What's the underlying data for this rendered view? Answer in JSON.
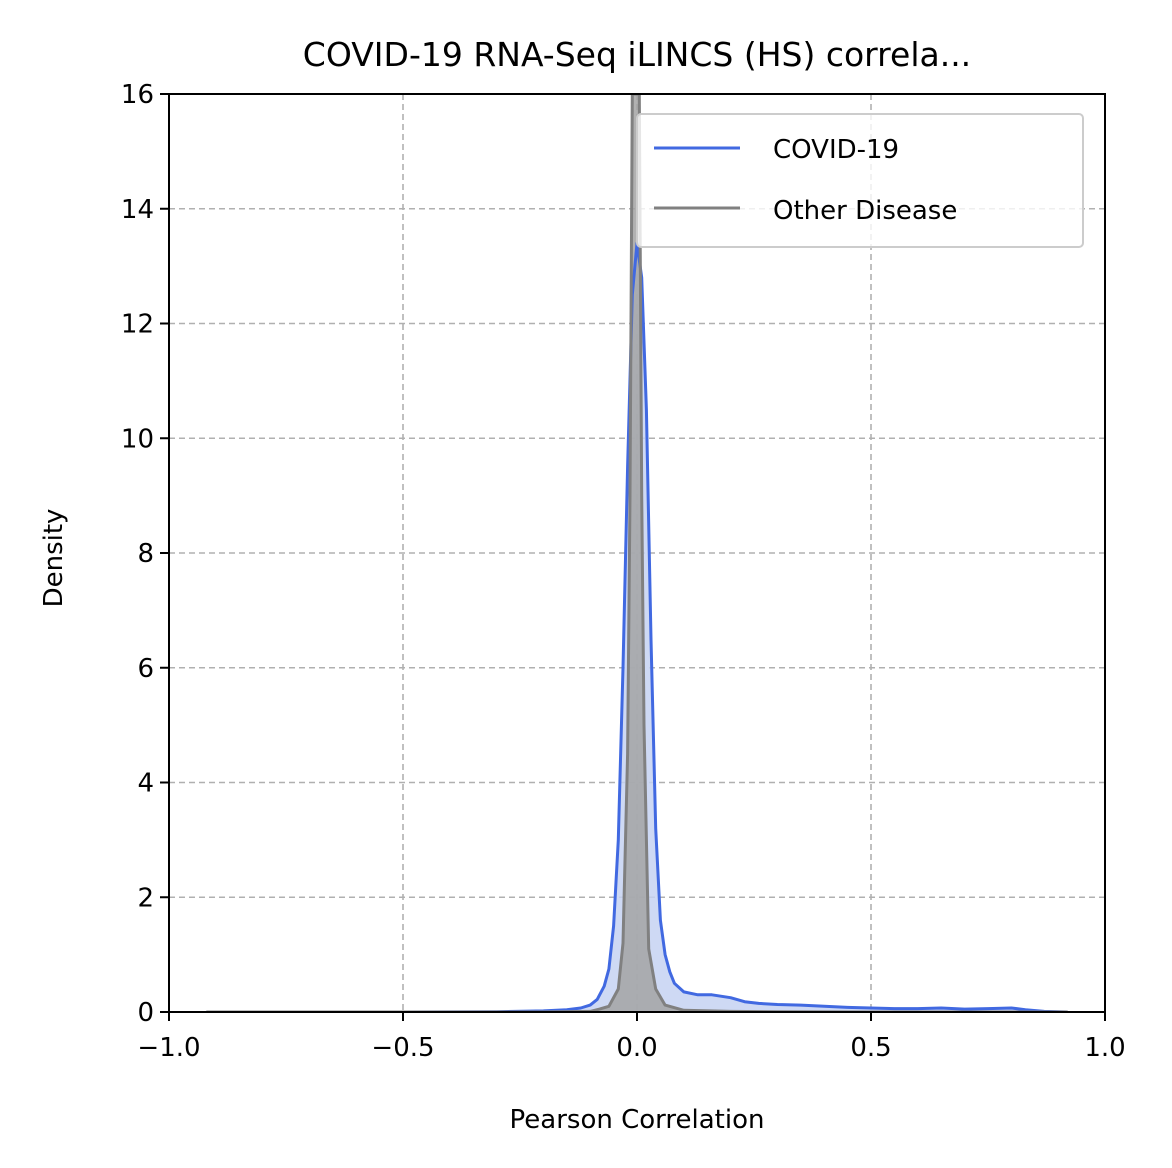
{
  "chart_data": {
    "type": "area",
    "title": "COVID-19 RNA-Seq iLINCS (HS) correla...",
    "xlabel": "Pearson Correlation",
    "ylabel": "Density",
    "xlim": [
      -1.0,
      1.0
    ],
    "ylim": [
      0,
      16
    ],
    "x_ticks": [
      -1.0,
      -0.5,
      0.0,
      0.5,
      1.0
    ],
    "x_tick_labels": [
      "−1.0",
      "−0.5",
      "0.0",
      "0.5",
      "1.0"
    ],
    "y_ticks": [
      0,
      2,
      4,
      6,
      8,
      10,
      12,
      14,
      16
    ],
    "y_tick_labels": [
      "0",
      "2",
      "4",
      "6",
      "8",
      "10",
      "12",
      "14",
      "16"
    ],
    "grid": true,
    "legend_position": "top-right",
    "series": [
      {
        "name": "COVID-19",
        "color": "#4169e1",
        "fill": "#c5d2f2",
        "points": [
          [
            -0.92,
            0.0
          ],
          [
            -0.5,
            0.0
          ],
          [
            -0.3,
            0.005
          ],
          [
            -0.2,
            0.02
          ],
          [
            -0.15,
            0.04
          ],
          [
            -0.12,
            0.07
          ],
          [
            -0.1,
            0.12
          ],
          [
            -0.085,
            0.22
          ],
          [
            -0.07,
            0.45
          ],
          [
            -0.06,
            0.75
          ],
          [
            -0.05,
            1.5
          ],
          [
            -0.04,
            3.0
          ],
          [
            -0.03,
            6.0
          ],
          [
            -0.02,
            9.5
          ],
          [
            -0.01,
            12.5
          ],
          [
            0.0,
            13.4
          ],
          [
            0.01,
            12.8
          ],
          [
            0.02,
            10.5
          ],
          [
            0.03,
            6.5
          ],
          [
            0.04,
            3.2
          ],
          [
            0.05,
            1.6
          ],
          [
            0.06,
            1.0
          ],
          [
            0.07,
            0.7
          ],
          [
            0.08,
            0.5
          ],
          [
            0.1,
            0.35
          ],
          [
            0.13,
            0.3
          ],
          [
            0.16,
            0.3
          ],
          [
            0.2,
            0.25
          ],
          [
            0.23,
            0.18
          ],
          [
            0.26,
            0.15
          ],
          [
            0.3,
            0.13
          ],
          [
            0.35,
            0.12
          ],
          [
            0.4,
            0.1
          ],
          [
            0.45,
            0.08
          ],
          [
            0.5,
            0.07
          ],
          [
            0.55,
            0.06
          ],
          [
            0.6,
            0.06
          ],
          [
            0.65,
            0.07
          ],
          [
            0.7,
            0.05
          ],
          [
            0.75,
            0.06
          ],
          [
            0.8,
            0.07
          ],
          [
            0.83,
            0.04
          ],
          [
            0.87,
            0.01
          ],
          [
            0.92,
            0.0
          ]
        ]
      },
      {
        "name": "Other Disease",
        "color": "#808080",
        "fill": "#a3a3a3",
        "points": [
          [
            -0.92,
            0.0
          ],
          [
            -0.2,
            0.0
          ],
          [
            -0.1,
            0.01
          ],
          [
            -0.08,
            0.05
          ],
          [
            -0.06,
            0.1
          ],
          [
            -0.04,
            0.4
          ],
          [
            -0.03,
            1.2
          ],
          [
            -0.02,
            4.5
          ],
          [
            -0.015,
            9.0
          ],
          [
            -0.01,
            16.0
          ],
          [
            0.0,
            16.0
          ],
          [
            0.005,
            16.0
          ],
          [
            0.01,
            9.0
          ],
          [
            0.015,
            5.0
          ],
          [
            0.025,
            1.1
          ],
          [
            0.04,
            0.4
          ],
          [
            0.06,
            0.12
          ],
          [
            0.1,
            0.03
          ],
          [
            0.2,
            0.01
          ],
          [
            0.3,
            0.005
          ],
          [
            0.5,
            0.0
          ],
          [
            0.92,
            0.0
          ]
        ]
      }
    ]
  }
}
